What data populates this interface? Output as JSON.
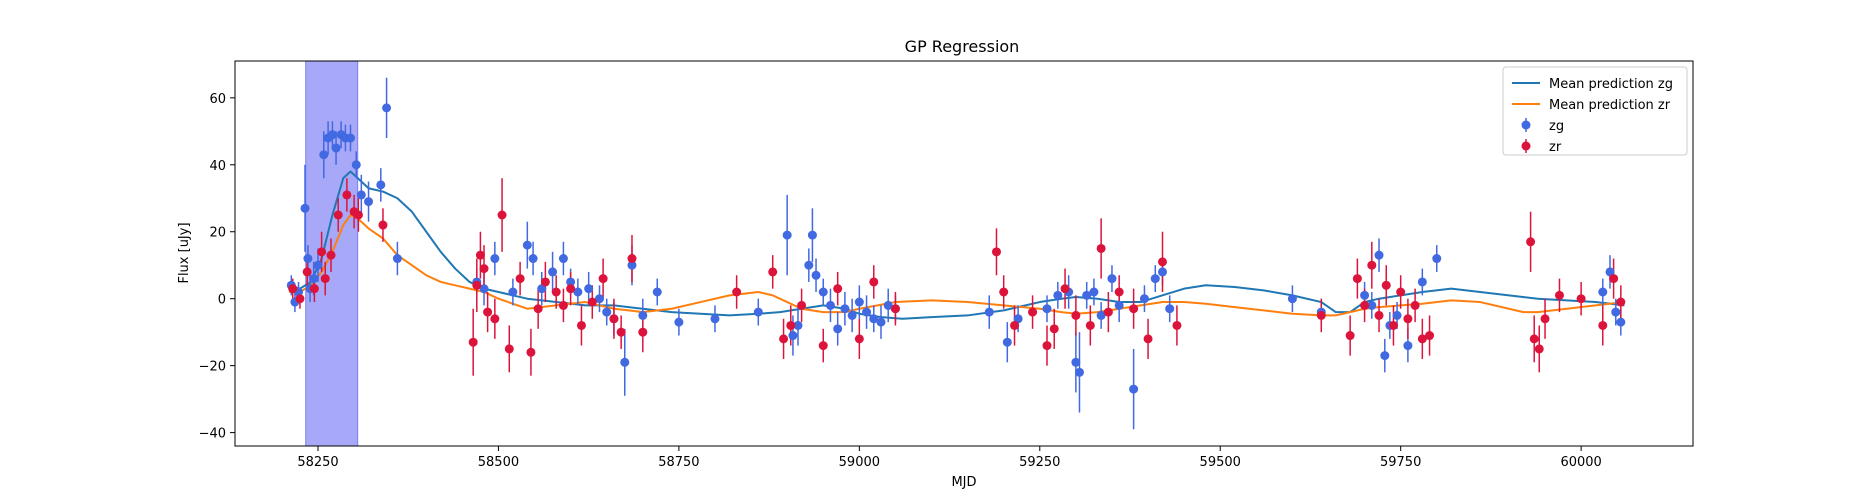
{
  "chart_data": {
    "type": "scatter",
    "title": "GP Regression",
    "xlabel": "MJD",
    "ylabel": "Flux [uJy]",
    "xlim": [
      58135,
      60155
    ],
    "ylim": [
      -44,
      71
    ],
    "xticks": [
      58250,
      58500,
      58750,
      59000,
      59250,
      59500,
      59750,
      60000
    ],
    "yticks": [
      -40,
      -20,
      0,
      20,
      40,
      60
    ],
    "legend_location": "top-right",
    "legend": [
      "Mean prediction zg",
      "Mean prediction zr",
      "zg",
      "zr"
    ],
    "shaded_region": {
      "x0": 58233,
      "x1": 58305,
      "color": "#a8a8f8"
    },
    "series": [
      {
        "name": "Mean prediction zg",
        "kind": "line",
        "color": "#1f77b4",
        "x": [
          58210,
          58225,
          58240,
          58255,
          58270,
          58285,
          58295,
          58305,
          58320,
          58340,
          58360,
          58380,
          58400,
          58420,
          58440,
          58460,
          58480,
          58500,
          58540,
          58580,
          58620,
          58660,
          58700,
          58740,
          58780,
          58820,
          58860,
          58890,
          58920,
          58950,
          58980,
          59000,
          59030,
          59060,
          59100,
          59150,
          59200,
          59250,
          59280,
          59300,
          59330,
          59360,
          59390,
          59420,
          59450,
          59480,
          59520,
          59560,
          59600,
          59640,
          59660,
          59680,
          59700,
          59720,
          59750,
          59780,
          59820,
          59860,
          59900,
          59940,
          59980,
          60020,
          60060
        ],
        "y": [
          4,
          3,
          5,
          12,
          25,
          36,
          38,
          36,
          33,
          32,
          30,
          26,
          20,
          14,
          9,
          5,
          3,
          2,
          0,
          -1,
          -2,
          -2,
          -3,
          -4,
          -4.5,
          -5,
          -4.5,
          -4,
          -3,
          -2,
          -3,
          -4.5,
          -5.5,
          -6,
          -5.5,
          -5,
          -3.5,
          -1,
          0,
          0.5,
          0,
          -1,
          -1,
          1,
          3,
          4,
          3.5,
          2.5,
          1,
          -1,
          -4,
          -4,
          -1,
          0,
          1,
          2,
          3,
          2,
          1,
          0,
          -0.5,
          -1,
          -2
        ]
      },
      {
        "name": "Mean prediction zr",
        "kind": "line",
        "color": "#ff7f0e",
        "x": [
          58210,
          58225,
          58240,
          58255,
          58270,
          58285,
          58295,
          58305,
          58320,
          58340,
          58360,
          58380,
          58400,
          58420,
          58440,
          58460,
          58480,
          58500,
          58540,
          58580,
          58620,
          58660,
          58700,
          58740,
          58780,
          58820,
          58860,
          58880,
          58900,
          58920,
          58950,
          58980,
          59000,
          59050,
          59100,
          59150,
          59200,
          59250,
          59280,
          59300,
          59330,
          59360,
          59390,
          59420,
          59450,
          59480,
          59520,
          59560,
          59600,
          59640,
          59660,
          59680,
          59700,
          59720,
          59750,
          59780,
          59820,
          59860,
          59900,
          59920,
          59940,
          59980,
          60020,
          60060
        ],
        "y": [
          2,
          2,
          4,
          8,
          14,
          22,
          25,
          24,
          21,
          18,
          13,
          10,
          7,
          5,
          4,
          3,
          2,
          0,
          -3,
          -2,
          -1,
          -3,
          -4,
          -3,
          -1,
          1,
          2,
          1,
          -1,
          -3,
          -4,
          -4,
          -3,
          -1,
          -0.5,
          -1,
          -2,
          -3,
          -4,
          -4.5,
          -4,
          -3,
          -2,
          -1,
          -1,
          -1.5,
          -2.5,
          -3.5,
          -4.5,
          -5,
          -5,
          -4,
          -3,
          -2.5,
          -2,
          -1.5,
          -0.5,
          -1,
          -3,
          -4,
          -4,
          -3,
          -2,
          -1
        ]
      },
      {
        "name": "zg",
        "kind": "errorbar",
        "color": "#4169e1",
        "x": [
          58213,
          58218,
          58223,
          58232,
          58236,
          58239,
          58244,
          58250,
          58258,
          58264,
          58270,
          58275,
          58282,
          58288,
          58295,
          58303,
          58310,
          58320,
          58337,
          58345,
          58360,
          58470,
          58480,
          58495,
          58520,
          58540,
          58548,
          58560,
          58575,
          58590,
          58600,
          58610,
          58625,
          58640,
          58650,
          58660,
          58675,
          58685,
          58700,
          58720,
          58750,
          58800,
          58860,
          58900,
          58908,
          58915,
          58930,
          58935,
          58940,
          58950,
          58960,
          58970,
          58980,
          58990,
          59000,
          59010,
          59020,
          59030,
          59040,
          59050,
          59180,
          59205,
          59220,
          59260,
          59275,
          59290,
          59300,
          59305,
          59315,
          59325,
          59335,
          59350,
          59360,
          59380,
          59395,
          59410,
          59420,
          59430,
          59600,
          59640,
          59700,
          59710,
          59720,
          59728,
          59735,
          59745,
          59760,
          59780,
          59800,
          60030,
          60040,
          60048,
          60055
        ],
        "y": [
          4,
          -1,
          2,
          27,
          12,
          3,
          6,
          10,
          43,
          48,
          49,
          45,
          49,
          48,
          48,
          40,
          31,
          29,
          34,
          57,
          12,
          5,
          3,
          12,
          2,
          16,
          12,
          3,
          8,
          12,
          5,
          2,
          3,
          0,
          -4,
          -6,
          -19,
          10,
          -5,
          2,
          -7,
          -6,
          -4,
          19,
          -11,
          -8,
          10,
          19,
          7,
          2,
          -2,
          -9,
          -3,
          -5,
          -1,
          -4,
          -6,
          -7,
          -2,
          -3,
          -4,
          -13,
          -6,
          -3,
          1,
          2,
          -19,
          -22,
          1,
          2,
          -5,
          6,
          -2,
          -27,
          0,
          6,
          8,
          -3,
          0,
          -4,
          1,
          -2,
          13,
          -17,
          -8,
          -5,
          -14,
          5,
          12,
          2,
          8,
          -4,
          -7
        ],
        "err": [
          3,
          3,
          3,
          13,
          4,
          4,
          5,
          5,
          7,
          5,
          4,
          5,
          4,
          4,
          4,
          4,
          6,
          6,
          5,
          9,
          5,
          4,
          5,
          5,
          4,
          7,
          5,
          5,
          6,
          5,
          4,
          4,
          5,
          4,
          4,
          5,
          10,
          6,
          5,
          4,
          4,
          4,
          4,
          12,
          6,
          6,
          5,
          8,
          5,
          4,
          5,
          5,
          5,
          5,
          5,
          5,
          4,
          5,
          5,
          4,
          5,
          6,
          4,
          4,
          4,
          5,
          9,
          12,
          4,
          4,
          4,
          4,
          5,
          12,
          4,
          4,
          4,
          4,
          4,
          4,
          4,
          4,
          5,
          5,
          4,
          4,
          5,
          4,
          4,
          4,
          5,
          4,
          4
        ]
      },
      {
        "name": "zr",
        "kind": "errorbar",
        "color": "#dc143c",
        "x": [
          58215,
          58225,
          58235,
          58245,
          58255,
          58260,
          58268,
          58278,
          58290,
          58300,
          58306,
          58340,
          58465,
          58470,
          58475,
          58480,
          58485,
          58495,
          58505,
          58515,
          58530,
          58545,
          58555,
          58565,
          58580,
          58590,
          58600,
          58615,
          58630,
          58645,
          58660,
          58670,
          58685,
          58700,
          58830,
          58880,
          58895,
          58905,
          58920,
          58950,
          58970,
          59000,
          59020,
          59050,
          59190,
          59200,
          59215,
          59240,
          59260,
          59270,
          59285,
          59300,
          59320,
          59335,
          59345,
          59360,
          59380,
          59400,
          59420,
          59440,
          59640,
          59680,
          59690,
          59700,
          59710,
          59720,
          59730,
          59740,
          59750,
          59760,
          59770,
          59780,
          59790,
          59930,
          59935,
          59942,
          59950,
          59970,
          60000,
          60030,
          60045,
          60055
        ],
        "y": [
          3,
          0,
          8,
          3,
          14,
          6,
          13,
          25,
          31,
          26,
          25,
          22,
          -13,
          4,
          13,
          9,
          -4,
          -6,
          25,
          -15,
          6,
          -16,
          -3,
          5,
          2,
          -2,
          3,
          -8,
          -1,
          6,
          -6,
          -10,
          12,
          -10,
          2,
          8,
          -12,
          -8,
          -2,
          -14,
          3,
          -12,
          5,
          -3,
          14,
          2,
          -8,
          -4,
          -14,
          -9,
          3,
          -5,
          -8,
          15,
          -4,
          2,
          -3,
          -12,
          11,
          -8,
          -5,
          -11,
          6,
          -2,
          10,
          -5,
          4,
          -8,
          2,
          -6,
          -2,
          -12,
          -11,
          17,
          -12,
          -15,
          -6,
          1,
          0,
          -8,
          6,
          -1
        ],
        "err": [
          3,
          3,
          5,
          4,
          6,
          5,
          5,
          5,
          5,
          5,
          5,
          5,
          10,
          8,
          7,
          7,
          6,
          6,
          11,
          7,
          5,
          7,
          6,
          6,
          5,
          5,
          5,
          6,
          5,
          6,
          6,
          5,
          7,
          6,
          5,
          5,
          6,
          6,
          5,
          5,
          5,
          6,
          5,
          5,
          7,
          5,
          6,
          5,
          6,
          6,
          6,
          6,
          6,
          9,
          6,
          5,
          6,
          6,
          9,
          6,
          5,
          6,
          6,
          5,
          7,
          5,
          6,
          6,
          5,
          6,
          5,
          6,
          6,
          9,
          7,
          7,
          6,
          5,
          5,
          6,
          6,
          5
        ]
      }
    ]
  }
}
